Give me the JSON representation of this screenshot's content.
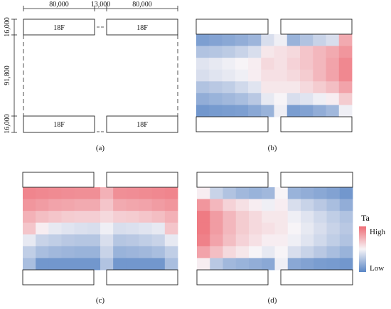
{
  "layout": {
    "dims_top": [
      "80,000",
      "13,000",
      "80,000"
    ],
    "dims_side": [
      "16,000",
      "91,800",
      "16,000"
    ],
    "building_label": "18F"
  },
  "panel_labels": [
    "(a)",
    "(b)",
    "(c)",
    "(d)"
  ],
  "legend": {
    "title": "Ta",
    "high": "High",
    "low": "Low"
  },
  "colors": {
    "low": "#5b87c6",
    "mid": "#f7f4f7",
    "high": "#ee6d76",
    "line": "#222222"
  },
  "heatmaps": {
    "b": [
      [
        -0.78,
        -0.74,
        -0.7,
        -0.65,
        -0.58,
        -0.2,
        -0.05,
        -0.6,
        -0.45,
        -0.3,
        -0.2,
        0.55
      ],
      [
        -0.45,
        -0.42,
        -0.38,
        -0.3,
        -0.2,
        0.1,
        0.15,
        0.2,
        0.35,
        0.45,
        0.55,
        0.7
      ],
      [
        -0.15,
        -0.1,
        -0.05,
        0.0,
        0.05,
        0.2,
        0.15,
        0.25,
        0.35,
        0.45,
        0.6,
        0.8
      ],
      [
        -0.2,
        -0.15,
        -0.1,
        -0.05,
        0.05,
        0.15,
        0.15,
        0.2,
        0.3,
        0.45,
        0.6,
        0.8
      ],
      [
        -0.45,
        -0.4,
        -0.35,
        -0.25,
        -0.15,
        0.1,
        0.1,
        0.1,
        0.2,
        0.3,
        0.4,
        0.6
      ],
      [
        -0.65,
        -0.6,
        -0.55,
        -0.5,
        -0.4,
        -0.1,
        0.0,
        -0.2,
        -0.15,
        -0.05,
        0.05,
        0.3
      ],
      [
        -0.85,
        -0.82,
        -0.8,
        -0.78,
        -0.7,
        -0.6,
        -0.05,
        -0.8,
        -0.75,
        -0.65,
        -0.55,
        -0.05
      ]
    ],
    "c": [
      [
        0.82,
        0.8,
        0.78,
        0.76,
        0.75,
        0.75,
        0.5,
        0.75,
        0.76,
        0.78,
        0.8,
        0.82
      ],
      [
        0.7,
        0.65,
        0.6,
        0.58,
        0.55,
        0.55,
        0.35,
        0.55,
        0.58,
        0.6,
        0.65,
        0.7
      ],
      [
        0.5,
        0.4,
        0.35,
        0.3,
        0.28,
        0.28,
        0.2,
        0.28,
        0.3,
        0.35,
        0.4,
        0.5
      ],
      [
        0.35,
        0.05,
        -0.1,
        -0.15,
        -0.18,
        -0.2,
        -0.05,
        -0.2,
        -0.18,
        -0.15,
        -0.1,
        0.35
      ],
      [
        -0.1,
        -0.3,
        -0.35,
        -0.4,
        -0.42,
        -0.42,
        -0.2,
        -0.42,
        -0.4,
        -0.35,
        -0.3,
        -0.1
      ],
      [
        -0.35,
        -0.5,
        -0.55,
        -0.58,
        -0.6,
        -0.6,
        -0.3,
        -0.6,
        -0.58,
        -0.55,
        -0.5,
        -0.35
      ],
      [
        -0.5,
        -0.85,
        -0.85,
        -0.85,
        -0.85,
        -0.85,
        -0.45,
        -0.85,
        -0.85,
        -0.85,
        -0.85,
        -0.5
      ]
    ],
    "d": [
      [
        0.05,
        -0.3,
        -0.45,
        -0.55,
        -0.6,
        -0.55,
        0.0,
        -0.6,
        -0.65,
        -0.7,
        -0.75,
        -0.85
      ],
      [
        0.7,
        0.45,
        0.25,
        0.15,
        0.05,
        -0.05,
        0.05,
        -0.2,
        -0.3,
        -0.4,
        -0.5,
        -0.65
      ],
      [
        0.9,
        0.65,
        0.45,
        0.3,
        0.2,
        0.1,
        0.1,
        -0.05,
        -0.15,
        -0.25,
        -0.35,
        -0.45
      ],
      [
        0.9,
        0.65,
        0.45,
        0.3,
        0.2,
        0.15,
        0.1,
        0.0,
        -0.1,
        -0.2,
        -0.3,
        -0.4
      ],
      [
        0.85,
        0.6,
        0.4,
        0.25,
        0.15,
        0.05,
        0.05,
        -0.05,
        -0.15,
        -0.25,
        -0.35,
        -0.45
      ],
      [
        0.6,
        0.4,
        0.2,
        0.1,
        0.0,
        -0.1,
        0.0,
        -0.2,
        -0.3,
        -0.4,
        -0.5,
        -0.6
      ],
      [
        0.05,
        -0.4,
        -0.55,
        -0.6,
        -0.65,
        -0.7,
        -0.05,
        -0.7,
        -0.75,
        -0.8,
        -0.82,
        -0.85
      ]
    ]
  }
}
